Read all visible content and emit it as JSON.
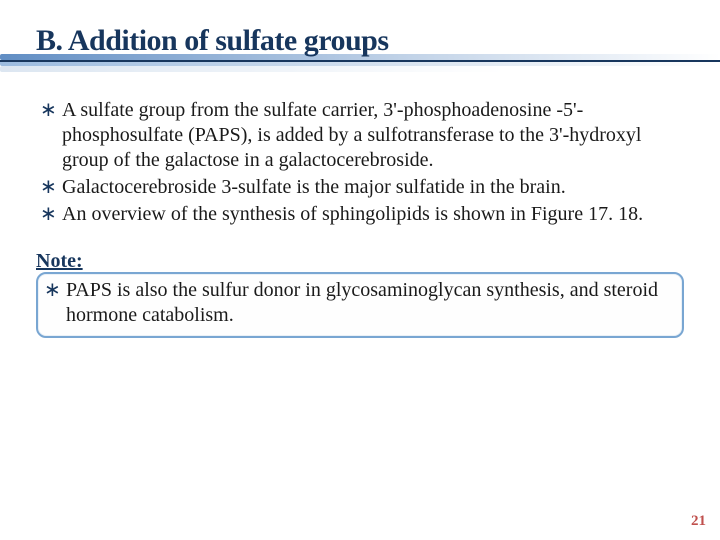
{
  "title": "B. Addition of sulfate groups",
  "bullets": [
    "A sulfate group from the sulfate carrier, 3'-phosphoadenosine -5'-phosphosulfate (PAPS), is added by a sulfotransferase to the 3'-hydroxyl group of the galactose in a galactocerebroside.",
    "Galactocerebroside 3-sulfate is the major sulfatide in the brain.",
    "An overview of the synthesis of sphingolipids is shown in Figure 17. 18."
  ],
  "note_label": "Note:",
  "note_bullets": [
    "PAPS is also the sulfur donor in glycosaminoglycan synthesis, and steroid hormone catabolism."
  ],
  "page_number": "21",
  "colors": {
    "title_text": "#17365d",
    "bullet_marker": "#17365d",
    "body_text": "#1a1a1a",
    "note_border": "#79a6d2",
    "page_number": "#c0504d",
    "background": "#ffffff"
  },
  "typography": {
    "title_fontsize_pt": 22,
    "body_fontsize_pt": 15,
    "font_family": "Palatino Linotype"
  }
}
